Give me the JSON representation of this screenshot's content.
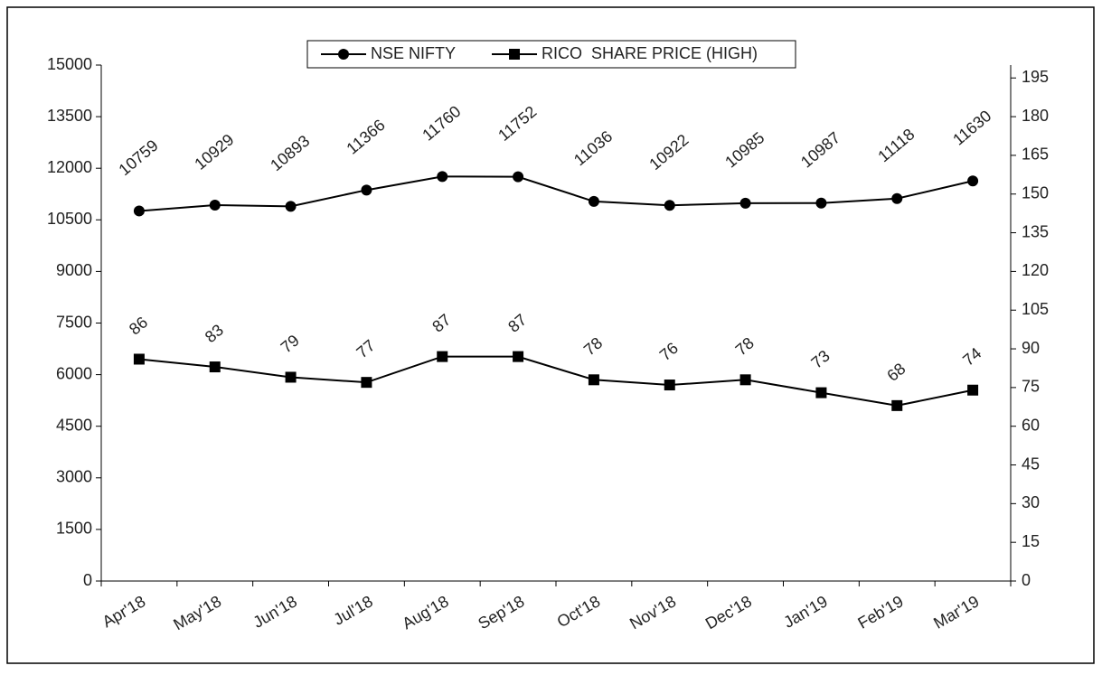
{
  "chart_data": {
    "type": "line",
    "categories": [
      "Apr'18",
      "May'18",
      "Jun'18",
      "Jul'18",
      "Aug'18",
      "Sep'18",
      "Oct'18",
      "Nov'18",
      "Dec'18",
      "Jan'19",
      "Feb'19",
      "Mar'19"
    ],
    "series": [
      {
        "name": "NSE NIFTY",
        "color": "#000000",
        "marker": "circle",
        "values": [
          10759,
          10929,
          10893,
          11366,
          11760,
          11752,
          11036,
          10922,
          10985,
          10987,
          11118,
          11630
        ]
      },
      {
        "name": "RICO  SHARE PRICE (HIGH)",
        "color": "#000000",
        "marker": "square",
        "axis": "y2",
        "values": [
          86,
          83,
          79,
          77,
          87,
          87,
          78,
          76,
          78,
          73,
          68,
          74
        ]
      }
    ],
    "ylim": [
      0,
      15000
    ],
    "yticks": [
      0,
      1500,
      3000,
      4500,
      6000,
      7500,
      9000,
      10500,
      12000,
      13500,
      15000
    ],
    "y2lim": [
      0,
      200
    ],
    "y2ticks": [
      0,
      15,
      30,
      45,
      60,
      75,
      90,
      105,
      120,
      135,
      150,
      165,
      180,
      195
    ],
    "grid": false,
    "legend": "top"
  }
}
